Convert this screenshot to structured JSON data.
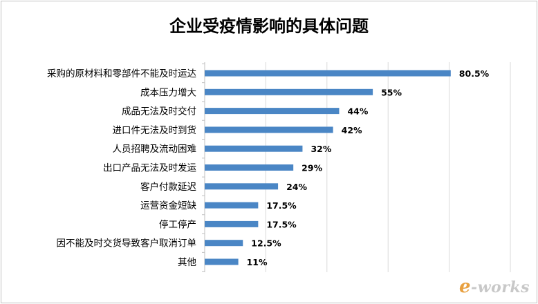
{
  "chart_data": {
    "type": "bar",
    "orientation": "horizontal",
    "title": "企业受疫情影响的具体问题",
    "categories": [
      "采购的原材料和零部件不能及时运达",
      "成本压力增大",
      "成品无法及时交付",
      "进口件无法及时到货",
      "人员招聘及流动困难",
      "出口产品无法及时发运",
      "客户付款延迟",
      "运营资金短缺",
      "停工停产",
      "因不能及时交货导致客户取消订单",
      "其他"
    ],
    "values": [
      80.5,
      55,
      44,
      42,
      32,
      29,
      24,
      17.5,
      17.5,
      12.5,
      11
    ],
    "value_labels": [
      "80.5%",
      "55%",
      "44%",
      "42%",
      "32%",
      "29%",
      "24%",
      "17.5%",
      "17.5%",
      "12.5%",
      "11%"
    ],
    "xlim": [
      0,
      100
    ],
    "grid": "vertical",
    "bar_color": "#4a86c5"
  },
  "watermark": "e-works"
}
